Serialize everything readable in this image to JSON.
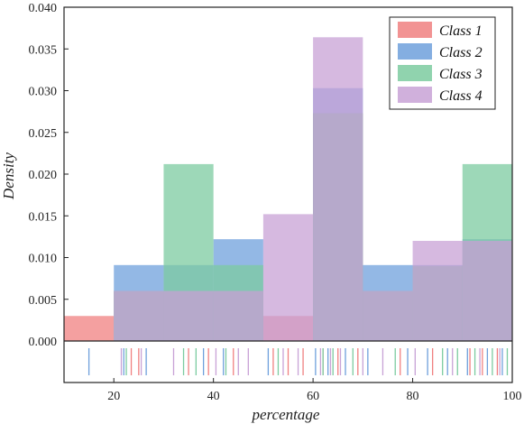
{
  "chart_data": {
    "type": "histogram",
    "xlabel": "percentage",
    "ylabel": "Density",
    "xlim": [
      10,
      100
    ],
    "ylim": [
      0,
      0.04
    ],
    "x_ticks": [
      20,
      40,
      60,
      80,
      100
    ],
    "y_ticks": [
      0.0,
      0.005,
      0.01,
      0.015,
      0.02,
      0.025,
      0.03,
      0.035,
      0.04
    ],
    "y_tick_labels": [
      "0.000",
      "0.005",
      "0.010",
      "0.015",
      "0.020",
      "0.025",
      "0.030",
      "0.035",
      "0.040"
    ],
    "bin_edges": [
      10,
      20,
      30,
      40,
      50,
      60,
      70,
      80,
      90,
      100
    ],
    "series": [
      {
        "name": "Class 1",
        "color": "#f08080",
        "densities": [
          0.003,
          0.006,
          0.006,
          0.006,
          0.003,
          0.0273,
          0.006,
          0.009,
          0.012
        ],
        "rug": [
          23.5,
          25,
          35,
          39,
          44,
          52,
          55,
          58,
          62,
          65,
          69,
          77.5,
          84,
          91.5,
          94,
          97
        ]
      },
      {
        "name": "Class 2",
        "color": "#6fa0dc",
        "densities": [
          0.0,
          0.0091,
          0.0091,
          0.0122,
          0.0,
          0.0303,
          0.0091,
          0.0091,
          0.0122
        ],
        "rug": [
          15,
          22,
          26.5,
          38,
          42,
          51,
          60.5,
          63,
          66.5,
          71,
          79,
          83,
          87,
          91,
          95,
          98
        ]
      },
      {
        "name": "Class 3",
        "color": "#7ccba0",
        "densities": [
          0.0,
          0.006,
          0.0212,
          0.0091,
          0.0,
          0.0273,
          0.006,
          0.009,
          0.0212
        ],
        "rug": [
          22.5,
          34,
          36.5,
          42.5,
          53,
          62,
          64,
          68,
          76.5,
          86,
          89,
          92.5,
          96,
          99
        ]
      },
      {
        "name": "Class 4",
        "color": "#c8a2d6",
        "densities": [
          0.0,
          0.006,
          0.006,
          0.006,
          0.0152,
          0.0364,
          0.006,
          0.012,
          0.012
        ],
        "rug": [
          21.5,
          25.5,
          32,
          40.5,
          45,
          47,
          54,
          57,
          61.5,
          63.5,
          65.5,
          70,
          74,
          80.5,
          88,
          93.5,
          97.5
        ]
      }
    ],
    "legend_position": "top-right",
    "grid": false
  }
}
